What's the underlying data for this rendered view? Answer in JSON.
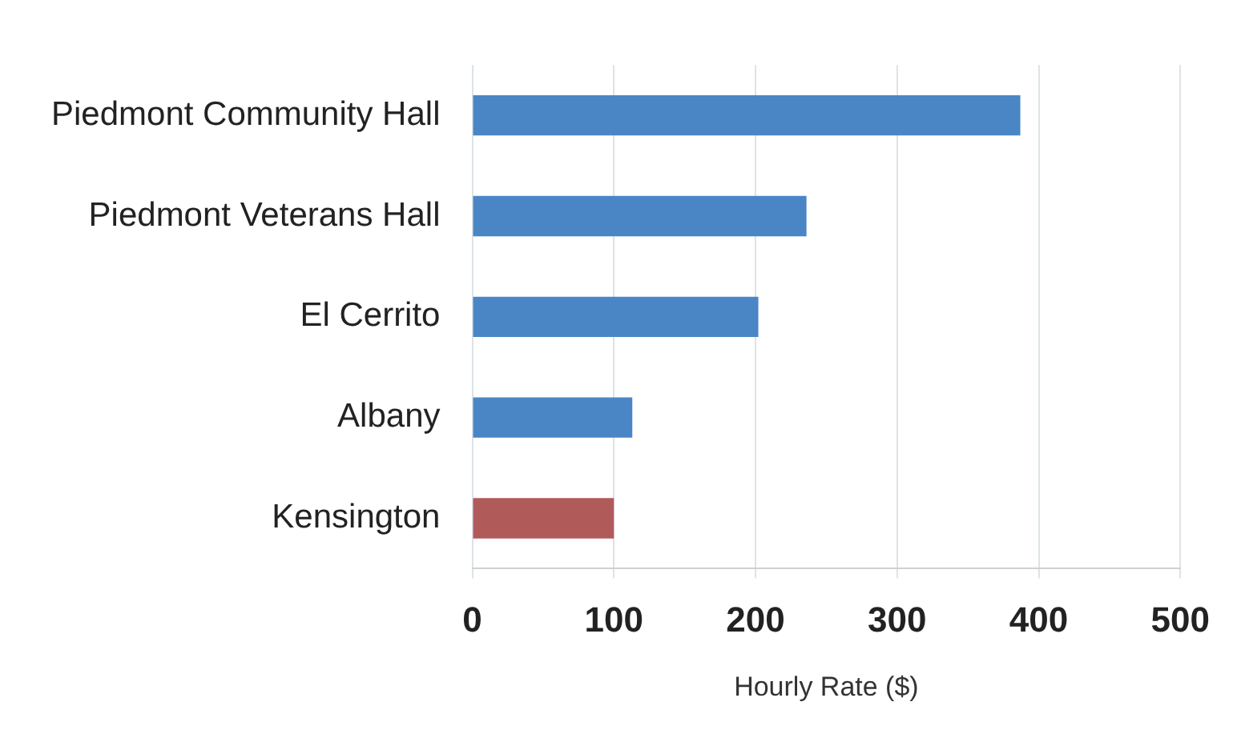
{
  "chart_data": {
    "type": "bar",
    "orientation": "horizontal",
    "xlabel": "Hourly Rate ($)",
    "categories": [
      "Piedmont Community Hall",
      "Piedmont Veterans Hall",
      "El Cerrito",
      "Albany",
      "Kensington"
    ],
    "values": [
      387,
      236,
      202,
      113,
      100
    ],
    "colors": [
      "#4a86c6",
      "#4a86c6",
      "#4a86c6",
      "#4a86c6",
      "#b05a5a"
    ],
    "xlim": [
      0,
      500
    ],
    "xticks": [
      0,
      100,
      200,
      300,
      400,
      500
    ],
    "grid": "x",
    "legend": false
  }
}
